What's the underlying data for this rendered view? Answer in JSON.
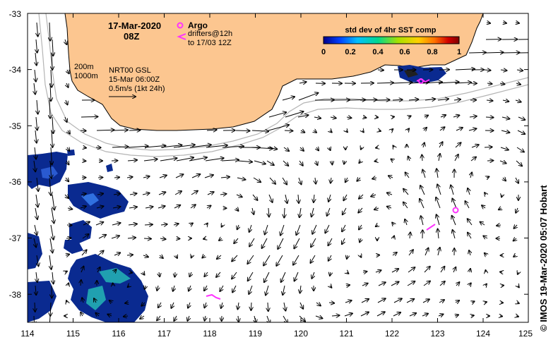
{
  "header": {
    "date": "17-Mar-2020",
    "time": "08Z"
  },
  "legend": {
    "argo_label": "Argo",
    "drifters_label": "drifters@12h",
    "drifters_period": "to 17/03 12Z",
    "isobath_200": "200m",
    "isobath_1000": "1000m",
    "product": "NRT00 GSL",
    "analysis_time": "15-Mar 06:00Z",
    "scale_label": "0.5m/s (1kt 24h)",
    "marker_color": "#ff33ff"
  },
  "colorbar": {
    "title": "std dev of 4hr SST comp",
    "ticks": [
      "0",
      "0.2",
      "0.4",
      "0.6",
      "0.8",
      "1"
    ],
    "colors": [
      "#00008b",
      "#0040ff",
      "#00c0ff",
      "#00d890",
      "#a8e000",
      "#ffd000",
      "#ff7000",
      "#d00000",
      "#800000"
    ]
  },
  "axes": {
    "x_ticks": [
      "114",
      "115",
      "116",
      "117",
      "118",
      "119",
      "120",
      "121",
      "122",
      "123",
      "124",
      "125"
    ],
    "y_ticks": [
      "-33",
      "-34",
      "-35",
      "-36",
      "-37",
      "-38"
    ],
    "lon_range": [
      114,
      125
    ],
    "lat_range": [
      -38.5,
      -33
    ]
  },
  "colors": {
    "land": "#fcc690",
    "sst_blue": "#0a2a90",
    "isobath": "#b4b4b4"
  },
  "credit": "© IMOS 19-Mar-2020 05:07 Hobart"
}
